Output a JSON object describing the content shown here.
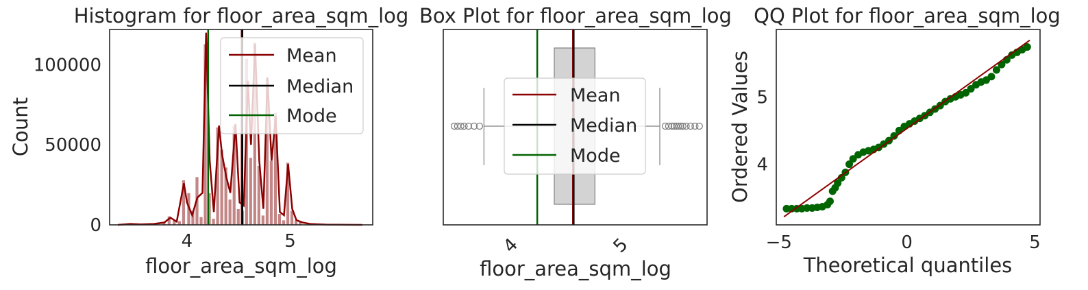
{
  "chart_data": [
    {
      "type": "bar",
      "title": "Histogram for floor_area_sqm_log",
      "xlabel": "floor_area_sqm_log",
      "ylabel": "Count",
      "xlim": [
        3.25,
        5.8
      ],
      "ylim": [
        0,
        122000
      ],
      "xticks": [
        {
          "v": 4,
          "label": "4"
        },
        {
          "v": 5,
          "label": "5"
        }
      ],
      "yticks": [
        {
          "v": 0,
          "label": "0"
        },
        {
          "v": 50000,
          "label": "50000"
        },
        {
          "v": 100000,
          "label": "100000"
        }
      ],
      "bars": [
        {
          "x": 3.4,
          "y": 400
        },
        {
          "x": 3.48,
          "y": 800
        },
        {
          "x": 3.56,
          "y": 300
        },
        {
          "x": 3.64,
          "y": 500
        },
        {
          "x": 3.72,
          "y": 900
        },
        {
          "x": 3.78,
          "y": 2000
        },
        {
          "x": 3.83,
          "y": 5500
        },
        {
          "x": 3.88,
          "y": 3000
        },
        {
          "x": 3.93,
          "y": 2500
        },
        {
          "x": 3.97,
          "y": 28000
        },
        {
          "x": 4.02,
          "y": 20000
        },
        {
          "x": 4.06,
          "y": 9000
        },
        {
          "x": 4.1,
          "y": 30000
        },
        {
          "x": 4.14,
          "y": 5000
        },
        {
          "x": 4.18,
          "y": 113000
        },
        {
          "x": 4.22,
          "y": 20000
        },
        {
          "x": 4.26,
          "y": 4000
        },
        {
          "x": 4.3,
          "y": 61000
        },
        {
          "x": 4.34,
          "y": 47000
        },
        {
          "x": 4.38,
          "y": 36000
        },
        {
          "x": 4.42,
          "y": 16000
        },
        {
          "x": 4.46,
          "y": 62000
        },
        {
          "x": 4.5,
          "y": 10000
        },
        {
          "x": 4.54,
          "y": 9000
        },
        {
          "x": 4.58,
          "y": 104000
        },
        {
          "x": 4.62,
          "y": 42000
        },
        {
          "x": 4.66,
          "y": 114000
        },
        {
          "x": 4.7,
          "y": 37000
        },
        {
          "x": 4.74,
          "y": 6000
        },
        {
          "x": 4.78,
          "y": 92000
        },
        {
          "x": 4.82,
          "y": 40000
        },
        {
          "x": 4.86,
          "y": 70000
        },
        {
          "x": 4.9,
          "y": 7000
        },
        {
          "x": 4.94,
          "y": 3000
        },
        {
          "x": 4.98,
          "y": 39000
        },
        {
          "x": 5.02,
          "y": 9000
        },
        {
          "x": 5.06,
          "y": 3000
        },
        {
          "x": 5.1,
          "y": 2000
        },
        {
          "x": 5.16,
          "y": 500
        },
        {
          "x": 5.24,
          "y": 300
        },
        {
          "x": 5.32,
          "y": 200
        },
        {
          "x": 5.5,
          "y": 100
        }
      ],
      "kde": [
        [
          3.33,
          0
        ],
        [
          3.45,
          600
        ],
        [
          3.55,
          300
        ],
        [
          3.68,
          600
        ],
        [
          3.78,
          1500
        ],
        [
          3.84,
          4500
        ],
        [
          3.9,
          2000
        ],
        [
          3.97,
          26000
        ],
        [
          4.0,
          14000
        ],
        [
          4.05,
          6000
        ],
        [
          4.1,
          17000
        ],
        [
          4.15,
          20000
        ],
        [
          4.185,
          120000
        ],
        [
          4.22,
          40000
        ],
        [
          4.26,
          8000
        ],
        [
          4.31,
          62000
        ],
        [
          4.34,
          44000
        ],
        [
          4.38,
          30000
        ],
        [
          4.42,
          20000
        ],
        [
          4.47,
          63000
        ],
        [
          4.51,
          14000
        ],
        [
          4.55,
          12000
        ],
        [
          4.59,
          90000
        ],
        [
          4.62,
          50000
        ],
        [
          4.66,
          113000
        ],
        [
          4.7,
          40000
        ],
        [
          4.74,
          10000
        ],
        [
          4.78,
          92000
        ],
        [
          4.82,
          40000
        ],
        [
          4.86,
          68000
        ],
        [
          4.9,
          8000
        ],
        [
          4.94,
          6000
        ],
        [
          4.98,
          38000
        ],
        [
          5.02,
          10000
        ],
        [
          5.06,
          3000
        ],
        [
          5.12,
          1500
        ],
        [
          5.2,
          500
        ],
        [
          5.35,
          150
        ],
        [
          5.7,
          0
        ]
      ],
      "mean": 4.53,
      "median": 4.53,
      "mode": 4.205,
      "legend": [
        "Mean",
        "Median",
        "Mode"
      ],
      "legend_position": "upper right",
      "colors": {
        "bar": "#b97070",
        "kde": "#8b0000",
        "mean": "#8b0000",
        "median": "#000000",
        "mode": "#006400"
      }
    },
    {
      "type": "box",
      "title": "Box Plot for floor_area_sqm_log",
      "xlabel": "floor_area_sqm_log",
      "xlim": [
        3.35,
        5.75
      ],
      "xticks": [
        {
          "v": 4,
          "label": "4"
        },
        {
          "v": 5,
          "label": "5"
        }
      ],
      "q1": 4.36,
      "median": 4.53,
      "q3": 4.73,
      "whisker_low": 3.72,
      "whisker_high": 5.32,
      "outliers_low": [
        3.45,
        3.48,
        3.51,
        3.54,
        3.58,
        3.63,
        3.68
      ],
      "outliers_high": [
        5.37,
        5.4,
        5.43,
        5.45,
        5.47,
        5.49,
        5.51,
        5.53,
        5.56,
        5.6,
        5.64,
        5.68
      ],
      "mean": 4.53,
      "mode": 4.205,
      "legend": [
        "Mean",
        "Median",
        "Mode"
      ],
      "legend_position": "center",
      "colors": {
        "box": "#d3d3d3",
        "mean": "#8b0000",
        "median": "#000000",
        "mode": "#006400"
      }
    },
    {
      "type": "scatter",
      "title": "QQ Plot for floor_area_sqm_log",
      "xlabel": "Theoretical quantiles",
      "ylabel": "Ordered Values",
      "xlim": [
        -5.1,
        5.2
      ],
      "ylim": [
        3.1,
        6.0
      ],
      "xticks": [
        {
          "v": -5,
          "label": "−5"
        },
        {
          "v": 0,
          "label": "0"
        },
        {
          "v": 5,
          "label": "5"
        }
      ],
      "yticks": [
        {
          "v": 4,
          "label": "4"
        },
        {
          "v": 5,
          "label": "5"
        }
      ],
      "fit_line": [
        [
          -4.8,
          3.22
        ],
        [
          4.8,
          5.84
        ]
      ],
      "points": [
        [
          -4.7,
          3.34
        ],
        [
          -4.5,
          3.34
        ],
        [
          -4.3,
          3.34
        ],
        [
          -4.1,
          3.34
        ],
        [
          -3.9,
          3.35
        ],
        [
          -3.7,
          3.35
        ],
        [
          -3.5,
          3.36
        ],
        [
          -3.3,
          3.37
        ],
        [
          -3.1,
          3.4
        ],
        [
          -3.0,
          3.45
        ],
        [
          -2.9,
          3.6
        ],
        [
          -2.8,
          3.65
        ],
        [
          -2.7,
          3.72
        ],
        [
          -2.55,
          3.8
        ],
        [
          -2.4,
          3.88
        ],
        [
          -2.25,
          4.0
        ],
        [
          -2.1,
          4.08
        ],
        [
          -1.9,
          4.14
        ],
        [
          -1.7,
          4.18
        ],
        [
          -1.5,
          4.2
        ],
        [
          -1.3,
          4.22
        ],
        [
          -1.1,
          4.25
        ],
        [
          -0.9,
          4.3
        ],
        [
          -0.7,
          4.35
        ],
        [
          -0.5,
          4.42
        ],
        [
          -0.3,
          4.5
        ],
        [
          -0.1,
          4.56
        ],
        [
          0.1,
          4.6
        ],
        [
          0.3,
          4.64
        ],
        [
          0.5,
          4.68
        ],
        [
          0.7,
          4.72
        ],
        [
          0.9,
          4.77
        ],
        [
          1.1,
          4.82
        ],
        [
          1.3,
          4.87
        ],
        [
          1.5,
          4.93
        ],
        [
          1.7,
          4.97
        ],
        [
          1.9,
          5.0
        ],
        [
          2.1,
          5.03
        ],
        [
          2.3,
          5.06
        ],
        [
          2.5,
          5.12
        ],
        [
          2.7,
          5.18
        ],
        [
          2.9,
          5.22
        ],
        [
          3.1,
          5.25
        ],
        [
          3.3,
          5.3
        ],
        [
          3.5,
          5.4
        ],
        [
          3.7,
          5.48
        ],
        [
          3.9,
          5.55
        ],
        [
          4.1,
          5.62
        ],
        [
          4.3,
          5.66
        ],
        [
          4.5,
          5.7
        ],
        [
          4.7,
          5.74
        ]
      ],
      "colors": {
        "points": "#006400",
        "fit": "#8b0000"
      }
    }
  ]
}
